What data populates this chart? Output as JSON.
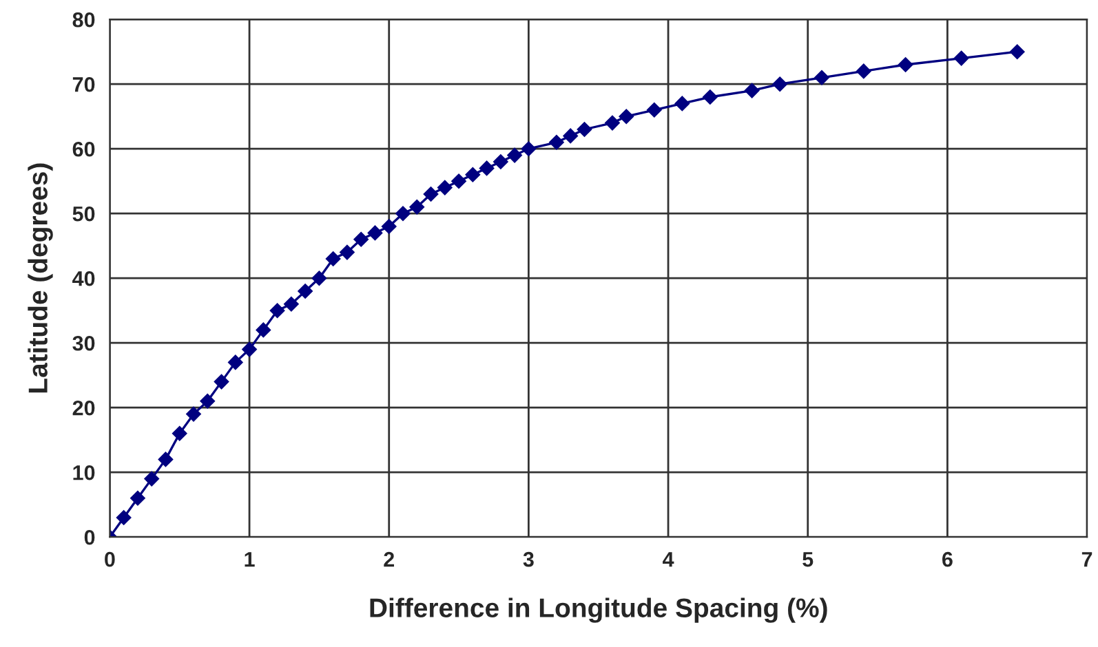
{
  "chart_data": {
    "type": "line",
    "xlabel": "Difference in Longitude Spacing (%)",
    "ylabel": "Latitude (degrees)",
    "x": [
      0,
      0.1,
      0.2,
      0.3,
      0.4,
      0.5,
      0.6,
      0.7,
      0.8,
      0.9,
      1.0,
      1.1,
      1.2,
      1.3,
      1.4,
      1.5,
      1.6,
      1.7,
      1.8,
      1.9,
      2.0,
      2.1,
      2.2,
      2.3,
      2.4,
      2.5,
      2.6,
      2.7,
      2.8,
      2.9,
      3.0,
      3.2,
      3.3,
      3.4,
      3.6,
      3.7,
      3.9,
      4.1,
      4.3,
      4.6,
      4.8,
      5.1,
      5.4,
      5.7,
      6.1,
      6.5
    ],
    "series": [
      {
        "color": "#000080",
        "values": [
          0,
          3,
          6,
          9,
          12,
          16,
          19,
          21,
          24,
          27,
          29,
          32,
          35,
          36,
          38,
          40,
          43,
          44,
          46,
          47,
          48,
          50,
          51,
          53,
          54,
          55,
          56,
          57,
          58,
          59,
          60,
          61,
          62,
          63,
          64,
          65,
          66,
          67,
          68,
          69,
          70,
          71,
          72,
          73,
          74,
          75
        ]
      }
    ],
    "xlim": [
      0,
      7
    ],
    "xticks": [
      0,
      1,
      2,
      3,
      4,
      5,
      6,
      7
    ],
    "ylim": [
      0,
      80
    ],
    "yticks": [
      0,
      10,
      20,
      30,
      40,
      50,
      60,
      70,
      80
    ],
    "grid": true,
    "marker": "diamond",
    "line_style": "solid"
  }
}
